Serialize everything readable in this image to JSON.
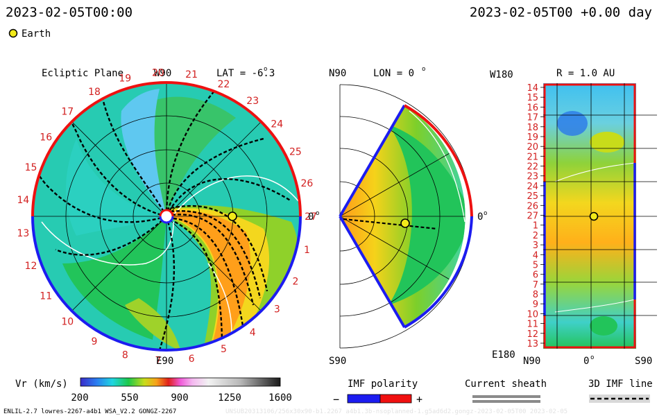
{
  "header": {
    "date": "2023-02-05T00:00",
    "date_right": "2023-02-05T00 +0.00 day",
    "earth_label": "Earth"
  },
  "ecliptic": {
    "title": "Ecliptic Plane",
    "top_label": "W90",
    "lat_label": "LAT = -6.3",
    "bottom_label": "E90",
    "zero_label": "0",
    "rim_numbers": [
      "20",
      "21",
      "22",
      "23",
      "24",
      "25",
      "26",
      "27",
      "1",
      "2",
      "3",
      "4",
      "5",
      "6",
      "7",
      "8",
      "9",
      "10",
      "11",
      "12",
      "13",
      "14",
      "15",
      "16",
      "17",
      "18",
      "19"
    ]
  },
  "meridional": {
    "top_label": "N90",
    "lon_label": "LON = 0",
    "zero_label": "0",
    "bottom_label": "S90"
  },
  "radial": {
    "top_label": "W180",
    "r_label": "R = 1.0 AU",
    "bottom_left": "E180",
    "x_labels": [
      "N90",
      "0",
      "S90"
    ],
    "y_labels": [
      "14",
      "15",
      "16",
      "17",
      "18",
      "19",
      "20",
      "21",
      "22",
      "23",
      "24",
      "25",
      "26",
      "27",
      "1",
      "2",
      "3",
      "4",
      "5",
      "6",
      "7",
      "8",
      "9",
      "10",
      "11",
      "12",
      "13"
    ]
  },
  "colorbar": {
    "label": "Vr (km/s)",
    "ticks": [
      "200",
      "550",
      "900",
      "1250",
      "1600"
    ],
    "range": [
      200,
      1600
    ]
  },
  "legend": {
    "imf_title": "IMF polarity",
    "minus": "−",
    "plus": "+",
    "sheath_title": "Current sheath",
    "imf3d_title": "3D IMF line"
  },
  "footer": {
    "left": "ENLIL-2.7 lowres-2267-a4b1 WSA_V2.2 GONGZ-2267",
    "right": "UNSUB20313106/256x30x90-b1.2267 a4b1.3b-nsoplanned-1.g5ad6d2.gongz-2023-02-05T00 2023-02-05"
  },
  "colors": {
    "label_red": "#d21f1f",
    "polarity_negative": "#1c1cf0",
    "polarity_positive": "#f01010"
  }
}
